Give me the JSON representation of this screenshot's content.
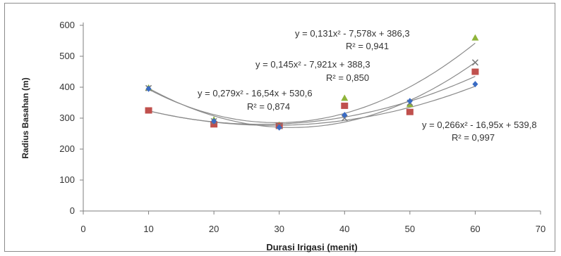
{
  "chart_data": {
    "type": "scatter",
    "xlabel": "Durasi Irigasi (menit)",
    "ylabel": "Radius Basahan (m)",
    "xlim": [
      0,
      70
    ],
    "ylim": [
      0,
      600
    ],
    "x_ticks": [
      "0",
      "10",
      "20",
      "30",
      "40",
      "50",
      "60",
      "70"
    ],
    "y_ticks": [
      "0",
      "100",
      "200",
      "300",
      "400",
      "500",
      "600"
    ],
    "grid": false,
    "series": [
      {
        "color": "#8fb43a",
        "marker": "triangle",
        "x": [
          10,
          20,
          30,
          40,
          50,
          60
        ],
        "y": [
          398,
          295,
          278,
          365,
          345,
          560
        ],
        "trendline": {
          "a": 0.131,
          "b": -7.578,
          "c": 386.3
        },
        "equation": "y = 0,131x² - 7,578x + 386,3",
        "r2": "R² = 0,941"
      },
      {
        "color": "#c0504d",
        "marker": "square",
        "x": [
          10,
          20,
          30,
          40,
          50,
          60
        ],
        "y": [
          325,
          280,
          275,
          340,
          320,
          450
        ],
        "trendline": {
          "a": 0.145,
          "b": -7.921,
          "c": 388.3
        },
        "equation": "y = 0,145x² - 7,921x + 388,3",
        "r2": "R² = 0,850"
      },
      {
        "color": "#7a7a7a",
        "marker": "cross",
        "x": [
          10,
          20,
          30,
          40,
          50,
          60
        ],
        "y": [
          397,
          290,
          275,
          300,
          350,
          480
        ],
        "trendline": {
          "a": 0.279,
          "b": -16.54,
          "c": 530.6
        },
        "equation": "y = 0,279x² - 16,54x + 530,6",
        "r2": "R² = 0,874"
      },
      {
        "color": "#3a6bc4",
        "marker": "diamond",
        "x": [
          10,
          20,
          30,
          40,
          50,
          60
        ],
        "y": [
          395,
          290,
          270,
          310,
          355,
          410
        ],
        "trendline": {
          "a": 0.266,
          "b": -16.95,
          "c": 539.8
        },
        "equation": "y = 0,266x² - 16,95x + 539,8",
        "r2": "R² = 0,997"
      }
    ]
  }
}
